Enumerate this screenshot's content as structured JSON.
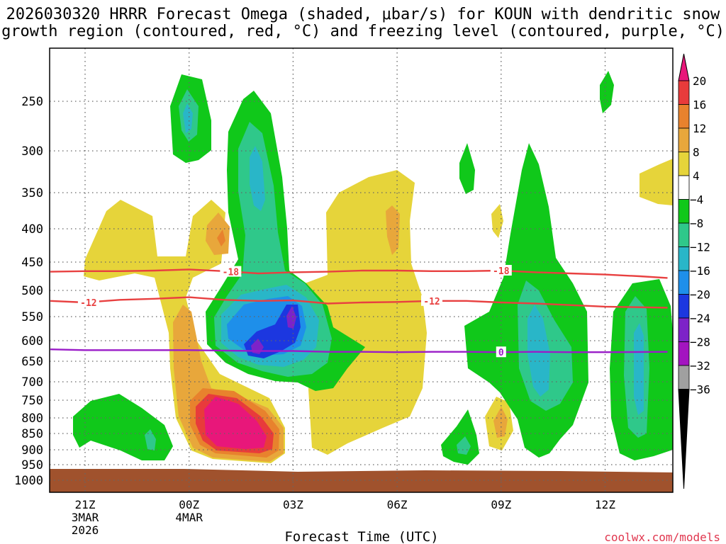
{
  "chart_data": {
    "type": "contour",
    "title_line1": "2026030320 HRRR Forecast Omega (shaded, μbar/s) for KOUN with dendritic snow",
    "title_line2": "growth region (contoured, red, °C) and freezing level (contoured, purple, °C)",
    "xlabel": "Forecast Time (UTC)",
    "credit": "coolwx.com/models",
    "y_ticks": [
      {
        "label": "250",
        "hpa": 250
      },
      {
        "label": "300",
        "hpa": 300
      },
      {
        "label": "350",
        "hpa": 350
      },
      {
        "label": "400",
        "hpa": 400
      },
      {
        "label": "450",
        "hpa": 450
      },
      {
        "label": "500",
        "hpa": 500
      },
      {
        "label": "550",
        "hpa": 550
      },
      {
        "label": "600",
        "hpa": 600
      },
      {
        "label": "650",
        "hpa": 650
      },
      {
        "label": "700",
        "hpa": 700
      },
      {
        "label": "750",
        "hpa": 750
      },
      {
        "label": "800",
        "hpa": 800
      },
      {
        "label": "850",
        "hpa": 850
      },
      {
        "label": "900",
        "hpa": 900
      },
      {
        "label": "950",
        "hpa": 950
      },
      {
        "label": "1000",
        "hpa": 1000
      }
    ],
    "x_ticks": [
      {
        "label": "21Z",
        "sub1": "3MAR",
        "sub2": "2026",
        "hour": 0
      },
      {
        "label": "00Z",
        "sub1": "4MAR",
        "sub2": "",
        "hour": 3
      },
      {
        "label": "03Z",
        "sub1": "",
        "sub2": "",
        "hour": 6
      },
      {
        "label": "06Z",
        "sub1": "",
        "sub2": "",
        "hour": 9
      },
      {
        "label": "09Z",
        "sub1": "",
        "sub2": "",
        "hour": 12
      },
      {
        "label": "12Z",
        "sub1": "",
        "sub2": "",
        "hour": 15
      }
    ],
    "colorbar": {
      "levels": [
        "20",
        "16",
        "12",
        "8",
        "4",
        "−4",
        "−8",
        "−12",
        "−16",
        "−20",
        "−24",
        "−28",
        "−32",
        "−36"
      ],
      "colors": [
        "#e8177a",
        "#e83b3b",
        "#e8822d",
        "#e8a73b",
        "#e6d43a",
        "#ffffff",
        "#10c81a",
        "#2fc88a",
        "#29b6c8",
        "#1e8fea",
        "#1c37e0",
        "#7d23c8",
        "#a314c0",
        "#a0a0a0",
        "#000000"
      ]
    },
    "contours": [
      {
        "name": "-18",
        "color": "#e84040",
        "points": [
          [
            -1,
            467
          ],
          [
            0,
            466
          ],
          [
            1,
            466
          ],
          [
            2,
            465
          ],
          [
            3,
            463
          ],
          [
            4,
            466
          ],
          [
            5,
            470
          ],
          [
            6,
            468
          ],
          [
            7,
            467
          ],
          [
            8,
            465
          ],
          [
            9,
            465
          ],
          [
            10,
            466
          ],
          [
            11,
            466
          ],
          [
            12,
            465
          ],
          [
            13,
            468
          ],
          [
            14,
            470
          ],
          [
            15,
            472
          ],
          [
            16,
            475
          ],
          [
            16.8,
            478
          ]
        ],
        "label_at": [
          [
            4.2,
            467
          ],
          [
            12,
            465
          ]
        ]
      },
      {
        "name": "-12",
        "color": "#e84040",
        "points": [
          [
            -1,
            520
          ],
          [
            0,
            523
          ],
          [
            1,
            518
          ],
          [
            2,
            516
          ],
          [
            3,
            513
          ],
          [
            4,
            518
          ],
          [
            5,
            520
          ],
          [
            6,
            519
          ],
          [
            7,
            525
          ],
          [
            8,
            523
          ],
          [
            9,
            522
          ],
          [
            10,
            520
          ],
          [
            11,
            520
          ],
          [
            12,
            523
          ],
          [
            13,
            525
          ],
          [
            14,
            528
          ],
          [
            15,
            531
          ],
          [
            16.8,
            533
          ]
        ],
        "label_at": [
          [
            0.1,
            523
          ],
          [
            10,
            520
          ]
        ]
      },
      {
        "name": "0",
        "color": "#9a1cc8",
        "points": [
          [
            -1,
            621
          ],
          [
            0,
            623
          ],
          [
            1,
            623
          ],
          [
            2,
            623
          ],
          [
            3,
            623
          ],
          [
            4,
            624
          ],
          [
            5,
            625
          ],
          [
            6,
            625
          ],
          [
            7,
            627
          ],
          [
            8,
            627
          ],
          [
            9,
            628
          ],
          [
            10,
            627
          ],
          [
            11,
            627
          ],
          [
            12,
            628
          ],
          [
            13,
            627
          ],
          [
            14,
            628
          ],
          [
            15,
            628
          ],
          [
            16.8,
            627
          ]
        ],
        "label_at": [
          [
            12,
            628
          ]
        ]
      }
    ]
  }
}
